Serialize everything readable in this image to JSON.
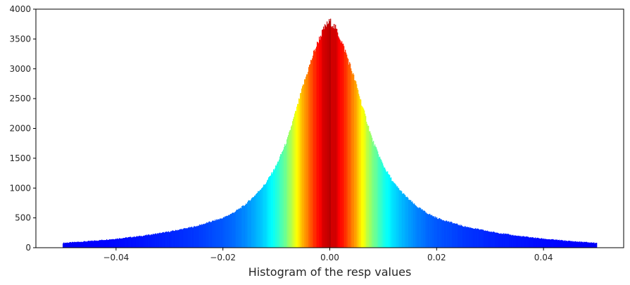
{
  "chart_data": {
    "type": "bar",
    "title": "",
    "xlabel": "Histogram of the resp values",
    "ylabel": "",
    "xlim": [
      -0.055,
      0.055
    ],
    "ylim": [
      0,
      4000
    ],
    "x_range": [
      -0.05,
      0.05
    ],
    "peak": 3800,
    "edge_value": 80,
    "grid": false,
    "colormap": "jet",
    "color_by": "height",
    "x_ticks": [
      -0.04,
      -0.02,
      0.0,
      0.02,
      0.04
    ],
    "x_tick_labels": [
      "−0.04",
      "−0.02",
      "0.00",
      "0.02",
      "0.04"
    ],
    "y_ticks": [
      0,
      500,
      1000,
      1500,
      2000,
      2500,
      3000,
      3500,
      4000
    ],
    "y_tick_labels": [
      "0",
      "500",
      "1000",
      "1500",
      "2000",
      "2500",
      "3000",
      "3500",
      "4000"
    ],
    "profile": {
      "x": [
        -0.05,
        -0.045,
        -0.04,
        -0.035,
        -0.03,
        -0.025,
        -0.02,
        -0.018,
        -0.016,
        -0.014,
        -0.012,
        -0.01,
        -0.008,
        -0.006,
        -0.005,
        -0.004,
        -0.003,
        -0.002,
        -0.001,
        0.0,
        0.001,
        0.002,
        0.003,
        0.004,
        0.005,
        0.006,
        0.008,
        0.01,
        0.012,
        0.014,
        0.016,
        0.018,
        0.02,
        0.025,
        0.03,
        0.035,
        0.04,
        0.045,
        0.05
      ],
      "y": [
        80,
        110,
        150,
        200,
        270,
        360,
        500,
        590,
        710,
        880,
        1080,
        1380,
        1800,
        2400,
        2720,
        3000,
        3270,
        3500,
        3690,
        3800,
        3690,
        3500,
        3270,
        3000,
        2720,
        2400,
        1800,
        1380,
        1080,
        880,
        710,
        590,
        500,
        360,
        270,
        200,
        150,
        110,
        80
      ]
    }
  }
}
